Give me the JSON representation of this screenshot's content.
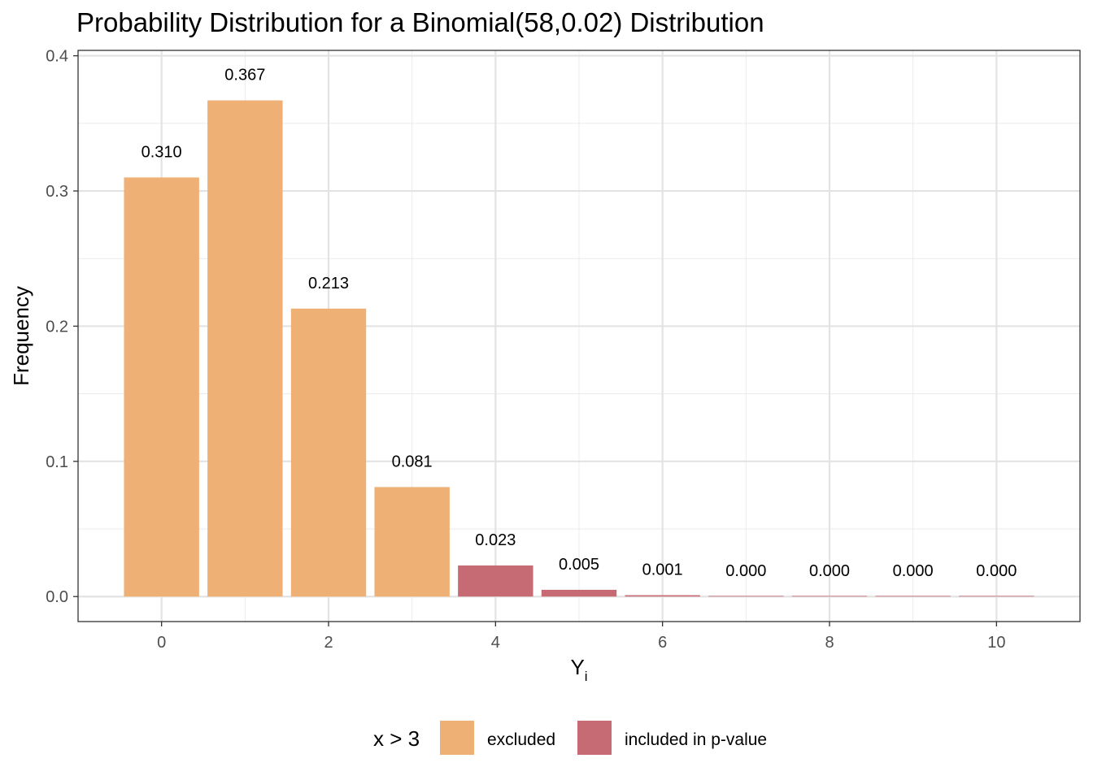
{
  "chart_data": {
    "type": "bar",
    "title": "Probability Distribution for a Binomial(58,0.02) Distribution",
    "xlabel": "Y",
    "xlabel_subscript": "i",
    "ylabel": "Frequency",
    "x": [
      0,
      1,
      2,
      3,
      4,
      5,
      6,
      7,
      8,
      9,
      10
    ],
    "values": [
      0.31,
      0.367,
      0.213,
      0.081,
      0.023,
      0.005,
      0.001,
      0.0,
      0.0,
      0.0,
      0.0
    ],
    "labels": [
      "0.310",
      "0.367",
      "0.213",
      "0.081",
      "0.023",
      "0.005",
      "0.001",
      "0.000",
      "0.000",
      "0.000",
      "0.000"
    ],
    "groups": [
      "excluded",
      "excluded",
      "excluded",
      "excluded",
      "included in p-value",
      "included in p-value",
      "included in p-value",
      "included in p-value",
      "included in p-value",
      "included in p-value",
      "included in p-value"
    ],
    "x_ticks": [
      "0",
      "2",
      "4",
      "6",
      "8",
      "10"
    ],
    "x_tick_values": [
      0,
      2,
      4,
      6,
      8,
      10
    ],
    "y_ticks": [
      "0.0",
      "0.1",
      "0.2",
      "0.3",
      "0.4"
    ],
    "y_tick_values": [
      0.0,
      0.1,
      0.2,
      0.3,
      0.4
    ],
    "xlim": [
      -1,
      11
    ],
    "ylim": [
      -0.0185,
      0.404
    ],
    "grid": true,
    "legend": {
      "title": "x > 3",
      "position": "bottom",
      "items": [
        {
          "label": "excluded",
          "color": "#EFB075"
        },
        {
          "label": "included in p-value",
          "color": "#C66B73"
        }
      ]
    },
    "colors": {
      "excluded": "#EFB075",
      "included in p-value": "#C66B73"
    }
  }
}
